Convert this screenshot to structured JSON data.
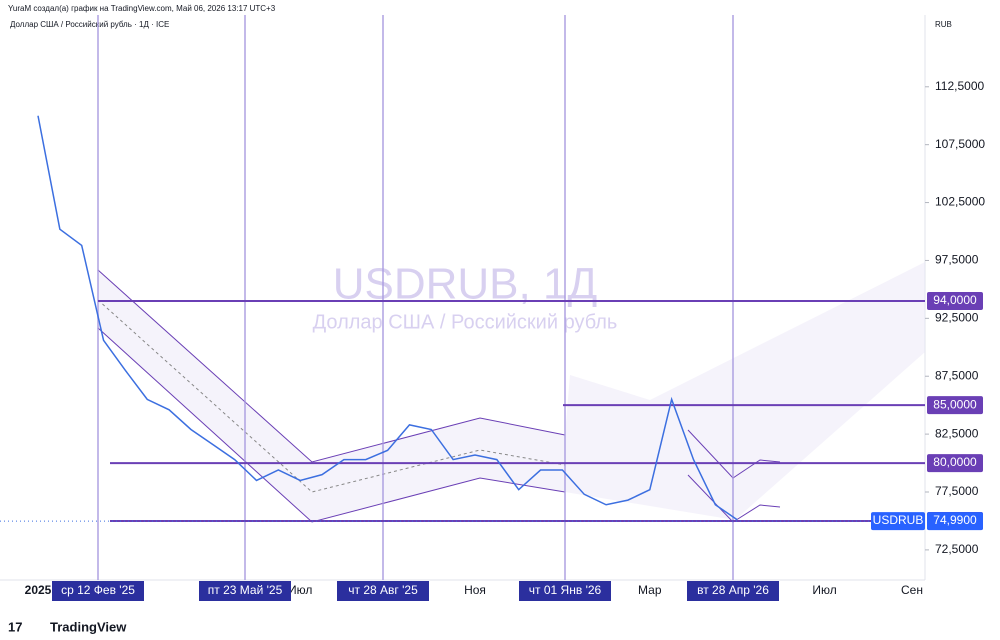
{
  "header": {
    "credit": "YuraM создал(а) график на TradingView.com, Май 06, 2026 13:17 UTC+3",
    "symbol_info": "Доллар США / Российский рубль · 1Д · ICE",
    "currency": "RUB",
    "brand": "TradingView"
  },
  "chart_data": {
    "type": "line",
    "title": "USDRUB, 1Д",
    "subtitle": "Доллар США / Российский рубль",
    "categories": [
      "2025",
      null,
      null,
      null,
      null,
      null,
      null,
      null,
      null,
      null,
      null,
      null,
      "Июл",
      null,
      null,
      null,
      null,
      null,
      null,
      null,
      "Ноя",
      null,
      null,
      null,
      null,
      null,
      null,
      null,
      "Мар",
      null,
      null,
      null,
      null,
      null,
      null,
      null,
      "Июл",
      null,
      null,
      null,
      "Сен"
    ],
    "series": [
      {
        "name": "USDRUB",
        "color": "#3c6fe0",
        "values": [
          110,
          100.2,
          98.8,
          90.6,
          88,
          85.5,
          84.6,
          82.9,
          81.6,
          80.3,
          78.5,
          79.4,
          78.5,
          79,
          80.3,
          80.3,
          81.1,
          83.3,
          82.9,
          80.3,
          80.7,
          80.3,
          77.7,
          79.4,
          79.4,
          77.3,
          76.4,
          76.8,
          77.7,
          85.5,
          80.3,
          76.4,
          75.1,
          null,
          null,
          null,
          null,
          null,
          null,
          null,
          null
        ]
      }
    ],
    "last_price": {
      "value": 74.99,
      "label": "74,9900"
    },
    "levels": [
      {
        "value": 94,
        "label": "94,0000"
      },
      {
        "value": 85,
        "label": "85,0000"
      },
      {
        "value": 80,
        "label": "80,0000"
      },
      {
        "value": 75,
        "label": "75,0000"
      }
    ],
    "date_markers": [
      "ср 12 Фев '25",
      "пт 23 Май '25",
      "чт 28 Авг '25",
      "чт 01 Янв '26",
      "вт 28 Апр '26"
    ],
    "ylim": [
      69.9,
      118.7
    ],
    "yticks": [
      {
        "value": 72.5,
        "label": "72,5000"
      },
      {
        "value": 77.5,
        "label": "77,5000"
      },
      {
        "value": 82.5,
        "label": "82,5000"
      },
      {
        "value": 87.5,
        "label": "87,5000"
      },
      {
        "value": 92.5,
        "label": "92,5000"
      },
      {
        "value": 97.5,
        "label": "97,5000"
      },
      {
        "value": 102.5,
        "label": "102,5000"
      },
      {
        "value": 107.5,
        "label": "107,5000"
      },
      {
        "value": 112.5,
        "label": "112,5000"
      }
    ]
  }
}
